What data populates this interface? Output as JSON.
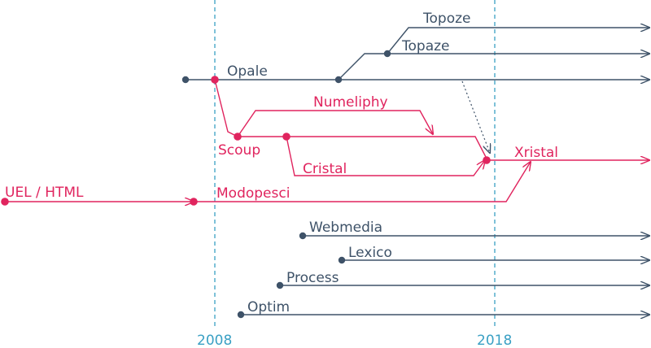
{
  "colors": {
    "slate": "#3e5268",
    "crimson": "#e0245e",
    "year_guide": "#3aa0c4"
  },
  "years": {
    "y2008": "2008",
    "y2018": "2018"
  },
  "labels": {
    "topoze": "Topoze",
    "topaze": "Topaze",
    "opale": "Opale",
    "numeliphy": "Numeliphy",
    "scoup": "Scoup",
    "cristal": "Cristal",
    "xristal": "Xristal",
    "uel_html": "UEL / HTML",
    "modopesci": "Modopesci",
    "webmedia": "Webmedia",
    "lexico": "Lexico",
    "process": "Process",
    "optim": "Optim"
  }
}
